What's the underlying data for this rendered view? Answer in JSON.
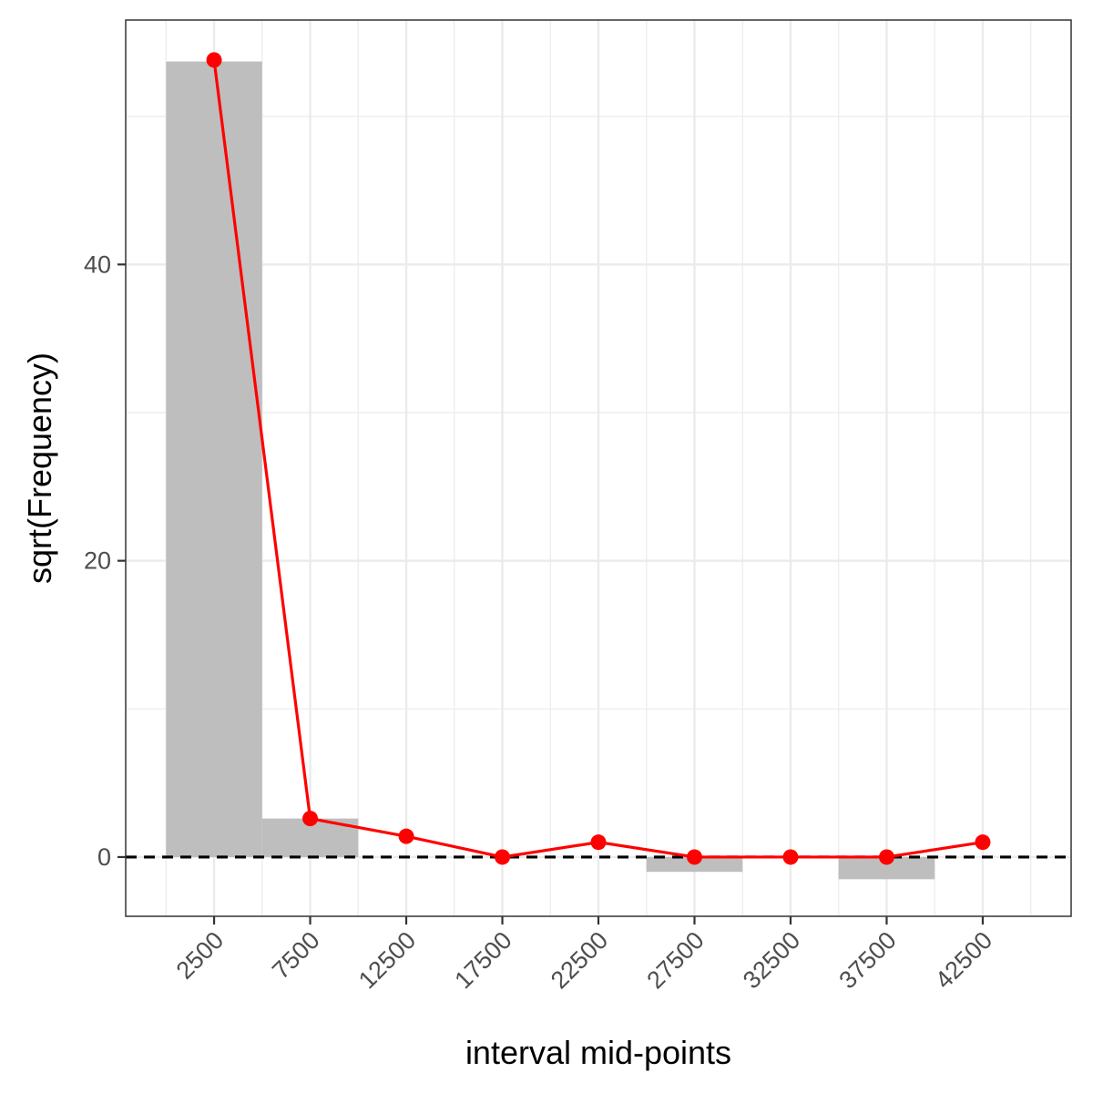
{
  "chart_data": {
    "type": "bar",
    "xlabel": "interval mid-points",
    "ylabel": "sqrt(Frequency)",
    "x_ticks": [
      "2500",
      "7500",
      "12500",
      "17500",
      "22500",
      "27500",
      "32500",
      "37500",
      "42500"
    ],
    "y_ticks": [
      "0",
      "20",
      "40"
    ],
    "bin_width": 5000,
    "bars": {
      "name": "histogram (rootogram)",
      "x": [
        2500,
        7500,
        12500,
        17500,
        22500,
        27500,
        32500,
        37500,
        42500
      ],
      "bottom": [
        0,
        0,
        0,
        0,
        0,
        -1.0,
        0,
        -1.5,
        0
      ],
      "top": [
        53.7,
        2.6,
        0,
        0,
        0,
        0,
        0,
        0,
        0
      ]
    },
    "fitted_line": {
      "x": [
        2500,
        7500,
        12500,
        17500,
        22500,
        27500,
        32500,
        37500,
        42500
      ],
      "y": [
        53.8,
        2.6,
        1.4,
        0.0,
        1.0,
        0.0,
        0.0,
        0.0,
        1.0
      ]
    },
    "reference_line": {
      "y": 0,
      "style": "dashed"
    },
    "xlim": [
      -2100,
      47100
    ],
    "ylim": [
      -4.0,
      56.5
    ],
    "grid": true,
    "colors": {
      "bar_fill": "#bebebe",
      "line": "#ff0000",
      "reference": "#000000",
      "grid": "#ebebeb",
      "panel_border": "#333333"
    }
  }
}
